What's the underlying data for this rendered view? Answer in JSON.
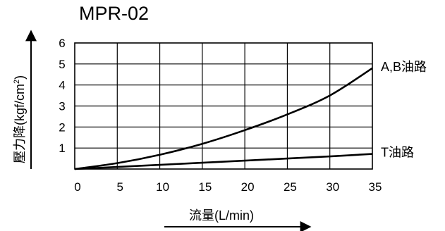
{
  "chart_data": {
    "type": "line",
    "title": "MPR-02",
    "xlabel": "流量(L/min)",
    "ylabel": "壓力降(kgf/cm",
    "ylabel_sup": "2",
    "ylabel_close": ")",
    "xlim": [
      0,
      35
    ],
    "ylim": [
      0,
      6
    ],
    "xticks": [
      0,
      5,
      10,
      15,
      20,
      25,
      30,
      35
    ],
    "yticks": [
      1,
      2,
      3,
      4,
      5,
      6
    ],
    "grid": true,
    "series": [
      {
        "name": "A,B油路",
        "x": [
          0,
          5,
          10,
          15,
          20,
          25,
          30,
          35
        ],
        "y": [
          0,
          0.28,
          0.68,
          1.2,
          1.85,
          2.6,
          3.5,
          4.8
        ]
      },
      {
        "name": "T油路",
        "x": [
          0,
          5,
          10,
          15,
          20,
          25,
          30,
          35
        ],
        "y": [
          0,
          0.1,
          0.2,
          0.3,
          0.4,
          0.5,
          0.6,
          0.72
        ]
      }
    ]
  }
}
